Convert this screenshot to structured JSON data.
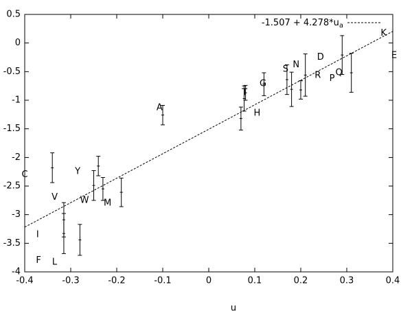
{
  "chart_data": {
    "type": "scatter",
    "xlabel": "u",
    "x": [
      -0.34,
      -0.315,
      -0.315,
      -0.28,
      -0.25,
      -0.24,
      -0.23,
      -0.19,
      -0.1,
      0.07,
      0.077,
      0.08,
      0.12,
      0.17,
      0.18,
      0.2,
      0.21,
      0.29,
      0.31
    ],
    "values": [
      -2.18,
      -3.09,
      -3.33,
      -3.44,
      -2.49,
      -2.15,
      -2.55,
      -2.61,
      -1.26,
      -1.32,
      -0.97,
      -0.87,
      -0.72,
      -0.64,
      -0.81,
      -0.82,
      -0.56,
      -0.21,
      -0.52
    ],
    "errors": [
      0.26,
      0.3,
      0.35,
      0.27,
      0.26,
      0.17,
      0.2,
      0.25,
      0.17,
      0.2,
      0.22,
      0.13,
      0.2,
      0.26,
      0.3,
      0.16,
      0.37,
      0.34,
      0.34
    ],
    "color": "#000000",
    "annotations": [
      {
        "text": "C",
        "x": -0.4,
        "y": -2.3
      },
      {
        "text": "V",
        "x": -0.335,
        "y": -2.7
      },
      {
        "text": "Y",
        "x": -0.285,
        "y": -2.25
      },
      {
        "text": "W",
        "x": -0.27,
        "y": -2.75
      },
      {
        "text": "M",
        "x": -0.22,
        "y": -2.8
      },
      {
        "text": "A",
        "x": -0.107,
        "y": -1.13
      },
      {
        "text": "T",
        "x": 0.078,
        "y": -0.87
      },
      {
        "text": "H",
        "x": 0.105,
        "y": -1.23
      },
      {
        "text": "G",
        "x": 0.118,
        "y": -0.71
      },
      {
        "text": "S",
        "x": 0.167,
        "y": -0.46
      },
      {
        "text": "N",
        "x": 0.19,
        "y": -0.38
      },
      {
        "text": "D",
        "x": 0.243,
        "y": -0.25
      },
      {
        "text": "R",
        "x": 0.237,
        "y": -0.57
      },
      {
        "text": "P",
        "x": 0.268,
        "y": -0.62
      },
      {
        "text": "Q",
        "x": 0.283,
        "y": -0.52
      },
      {
        "text": "K",
        "x": 0.38,
        "y": 0.17
      },
      {
        "text": "E",
        "x": 0.403,
        "y": -0.22
      },
      {
        "text": "I",
        "x": -0.372,
        "y": -3.35
      },
      {
        "text": "F",
        "x": -0.37,
        "y": -3.8
      },
      {
        "text": "L",
        "x": -0.335,
        "y": -3.83
      }
    ],
    "fit": {
      "intercept": -1.507,
      "slope": 4.278,
      "label": "-1.507 + 4.278*u",
      "label_sub": "a"
    },
    "xlim": [
      -0.4,
      0.4
    ],
    "ylim": [
      -4,
      0.5
    ],
    "xticks": [
      -0.4,
      -0.3,
      -0.2,
      -0.1,
      0,
      0.1,
      0.2,
      0.3,
      0.4
    ],
    "yticks": [
      0.5,
      0,
      -0.5,
      -1,
      -1.5,
      -2,
      -2.5,
      -3,
      -3.5,
      -4
    ]
  }
}
